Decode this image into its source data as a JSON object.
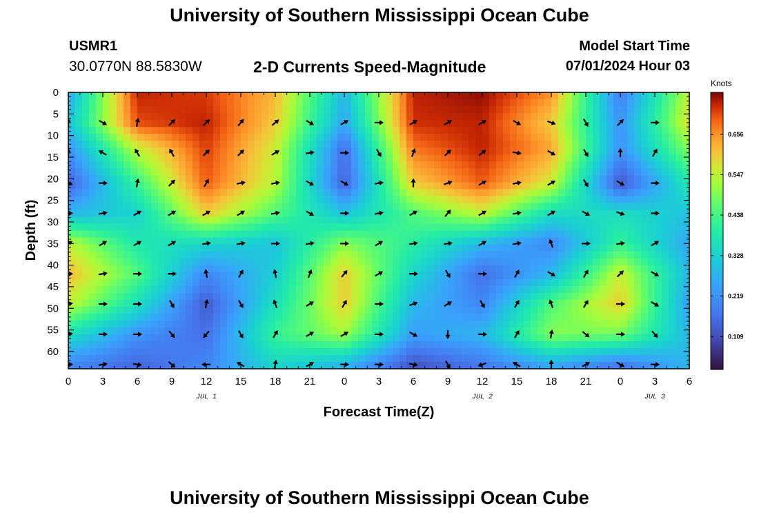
{
  "header": {
    "title": "University of Southern Mississippi Ocean Cube",
    "station_id": "USMR1",
    "station_coords": "30.0770N  88.5830W",
    "subtitle": "2-D Currents Speed-Magnitude",
    "model_label": "Model Start Time",
    "model_time": "07/01/2024 Hour 03"
  },
  "footer": {
    "title": "University of Southern Mississippi Ocean Cube"
  },
  "chart_data": {
    "type": "heatmap",
    "title": "2-D Currents Speed-Magnitude",
    "xlabel": "Forecast Time(Z)",
    "ylabel": "Depth (ft)",
    "x_hours": [
      0,
      6,
      12,
      18,
      24,
      30,
      36,
      42,
      48,
      54
    ],
    "x_ticks": [
      {
        "h": 0,
        "label": "0"
      },
      {
        "h": 3,
        "label": "3"
      },
      {
        "h": 6,
        "label": "6"
      },
      {
        "h": 9,
        "label": "9"
      },
      {
        "h": 12,
        "label": "12"
      },
      {
        "h": 15,
        "label": "15"
      },
      {
        "h": 18,
        "label": "18"
      },
      {
        "h": 21,
        "label": "21"
      },
      {
        "h": 24,
        "label": "0"
      },
      {
        "h": 27,
        "label": "3"
      },
      {
        "h": 30,
        "label": "6"
      },
      {
        "h": 33,
        "label": "9"
      },
      {
        "h": 36,
        "label": "12"
      },
      {
        "h": 39,
        "label": "15"
      },
      {
        "h": 42,
        "label": "18"
      },
      {
        "h": 45,
        "label": "21"
      },
      {
        "h": 48,
        "label": "0"
      },
      {
        "h": 51,
        "label": "3"
      },
      {
        "h": 54,
        "label": "6"
      }
    ],
    "date_labels": [
      {
        "h": 12,
        "label": "JUL 1"
      },
      {
        "h": 36,
        "label": "JUL 2"
      },
      {
        "h": 51,
        "label": "JUL 3"
      }
    ],
    "y_ticks": [
      0,
      5,
      10,
      15,
      20,
      25,
      30,
      35,
      40,
      45,
      50,
      55,
      60
    ],
    "ylim": [
      0,
      64
    ],
    "xlim": [
      0,
      54
    ],
    "colorbar": {
      "unit": "Knots",
      "range": [
        0.02,
        0.77
      ],
      "ticks": [
        0.109,
        0.219,
        0.328,
        0.438,
        0.547,
        0.656
      ],
      "tick_labels": [
        "0.109",
        "0.219",
        "0.328",
        "0.438",
        "0.547",
        "0.656"
      ]
    },
    "grid": false,
    "depths_ft": [
      0,
      7,
      13,
      21,
      28,
      35,
      42,
      49,
      56,
      63
    ],
    "speed_knots": [
      [
        0.25,
        0.74,
        0.72,
        0.62,
        0.28,
        0.74,
        0.76,
        0.66,
        0.18,
        0.55
      ],
      [
        0.3,
        0.71,
        0.74,
        0.6,
        0.25,
        0.73,
        0.74,
        0.6,
        0.22,
        0.58
      ],
      [
        0.22,
        0.55,
        0.72,
        0.56,
        0.16,
        0.68,
        0.74,
        0.64,
        0.22,
        0.5
      ],
      [
        0.14,
        0.42,
        0.7,
        0.54,
        0.14,
        0.6,
        0.7,
        0.56,
        0.12,
        0.38
      ],
      [
        0.28,
        0.33,
        0.6,
        0.45,
        0.3,
        0.45,
        0.55,
        0.35,
        0.35,
        0.3
      ],
      [
        0.55,
        0.38,
        0.34,
        0.3,
        0.5,
        0.4,
        0.28,
        0.2,
        0.42,
        0.25
      ],
      [
        0.62,
        0.45,
        0.2,
        0.32,
        0.6,
        0.34,
        0.16,
        0.28,
        0.56,
        0.28
      ],
      [
        0.55,
        0.36,
        0.13,
        0.36,
        0.6,
        0.28,
        0.2,
        0.45,
        0.6,
        0.24
      ],
      [
        0.36,
        0.22,
        0.16,
        0.42,
        0.52,
        0.24,
        0.28,
        0.5,
        0.48,
        0.28
      ],
      [
        0.2,
        0.15,
        0.2,
        0.34,
        0.28,
        0.12,
        0.18,
        0.26,
        0.18,
        0.28
      ]
    ],
    "arrow_times_h": [
      0,
      3,
      6,
      9,
      12,
      15,
      18,
      21,
      24,
      27,
      30,
      33,
      36,
      39,
      42,
      45,
      48,
      51
    ],
    "arrow_depths_ft": [
      7,
      14,
      21,
      28,
      35,
      42,
      49,
      56,
      63
    ],
    "arrow_direction_deg": [
      [
        0,
        120,
        10,
        45,
        45,
        40,
        50,
        120,
        60,
        90,
        60,
        60,
        60,
        120,
        110,
        150,
        45,
        90
      ],
      [
        0,
        300,
        330,
        330,
        45,
        45,
        60,
        80,
        90,
        150,
        20,
        45,
        50,
        100,
        120,
        150,
        0,
        30
      ],
      [
        110,
        90,
        10,
        45,
        30,
        80,
        80,
        120,
        120,
        80,
        0,
        70,
        60,
        80,
        60,
        150,
        120,
        90
      ],
      [
        90,
        80,
        60,
        60,
        60,
        60,
        80,
        120,
        90,
        80,
        60,
        40,
        60,
        80,
        60,
        120,
        110,
        90
      ],
      [
        60,
        60,
        60,
        60,
        80,
        80,
        90,
        80,
        90,
        60,
        80,
        80,
        60,
        80,
        340,
        90,
        80,
        60
      ],
      [
        90,
        80,
        90,
        90,
        350,
        30,
        350,
        20,
        40,
        60,
        90,
        150,
        90,
        30,
        120,
        30,
        45,
        120
      ],
      [
        80,
        90,
        90,
        150,
        10,
        150,
        340,
        60,
        30,
        90,
        70,
        60,
        150,
        30,
        340,
        30,
        90,
        120
      ],
      [
        80,
        90,
        90,
        140,
        220,
        150,
        30,
        60,
        60,
        90,
        120,
        180,
        90,
        30,
        10,
        130,
        90,
        140
      ],
      [
        90,
        80,
        100,
        130,
        270,
        300,
        10,
        60,
        90,
        90,
        100,
        150,
        250,
        300,
        0,
        60,
        120,
        90
      ]
    ]
  }
}
